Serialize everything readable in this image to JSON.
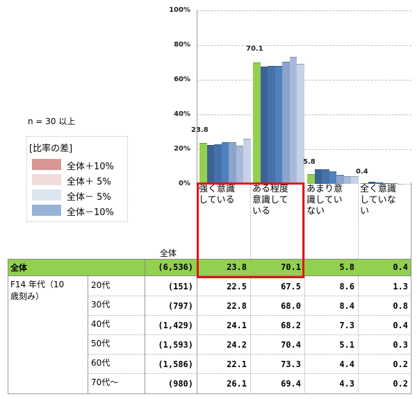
{
  "chart_data": {
    "type": "bar",
    "title": "",
    "xlabel": "",
    "ylabel": "",
    "ylim": [
      0,
      100
    ],
    "yticks": [
      "0%",
      "20%",
      "40%",
      "60%",
      "80%",
      "100%"
    ],
    "grid": true,
    "categories": [
      "強く意識している",
      "ある程度意識している",
      "あまり意識していない",
      "全く意識していない"
    ],
    "series": [
      {
        "name": "全体",
        "color": "#92d050",
        "values": [
          23.8,
          70.1,
          5.8,
          0.4
        ]
      },
      {
        "name": "20代",
        "color": "#3d6396",
        "values": [
          22.5,
          67.5,
          8.6,
          1.3
        ]
      },
      {
        "name": "30代",
        "color": "#4672a8",
        "values": [
          22.8,
          68.0,
          8.4,
          0.8
        ]
      },
      {
        "name": "40代",
        "color": "#4f81bd",
        "values": [
          24.1,
          68.2,
          7.3,
          0.4
        ]
      },
      {
        "name": "50代",
        "color": "#8aa4cc",
        "values": [
          24.2,
          70.4,
          5.1,
          0.3
        ]
      },
      {
        "name": "60代",
        "color": "#a9bad9",
        "values": [
          22.1,
          73.3,
          4.4,
          0.2
        ]
      },
      {
        "name": "70代〜",
        "color": "#c6d2e6",
        "values": [
          26.1,
          69.4,
          4.3,
          0.2
        ]
      }
    ],
    "data_labels": [
      "23.8",
      "70.1",
      "5.8",
      "0.4"
    ],
    "legend_position": "left"
  },
  "note": {
    "n_label": "n = 30 以上"
  },
  "legend": {
    "title": "[比率の差]",
    "items": [
      {
        "label": "全体＋10%",
        "color": "#da9694"
      },
      {
        "label": "全体＋ 5%",
        "color": "#f2dcdb"
      },
      {
        "label": "全体－ 5%",
        "color": "#dce6f1"
      },
      {
        "label": "全体－10%",
        "color": "#95b3d7"
      }
    ]
  },
  "table": {
    "n_header": "全体",
    "columns": [
      "強く意識している",
      "ある程度意識している",
      "あまり意識していない",
      "全く意識していない"
    ],
    "column_lines": [
      [
        "強く意識",
        "している"
      ],
      [
        "ある程度",
        "意識して",
        "いる"
      ],
      [
        "あまり意",
        "識してい",
        "ない"
      ],
      [
        "全く意識",
        "していな",
        "い"
      ]
    ],
    "total_row": {
      "label": "全体",
      "n": "(6,536)",
      "values": [
        "23.8",
        "70.1",
        "5.8",
        "0.4"
      ]
    },
    "group_label": "F14 年代（10歳刻み）",
    "group_label_lines": [
      "F14 年代（10",
      "歳刻み）"
    ],
    "rows": [
      {
        "label": "20代",
        "n": "(151)",
        "values": [
          "22.5",
          "67.5",
          "8.6",
          "1.3"
        ]
      },
      {
        "label": "30代",
        "n": "(797)",
        "values": [
          "22.8",
          "68.0",
          "8.4",
          "0.8"
        ]
      },
      {
        "label": "40代",
        "n": "(1,429)",
        "values": [
          "24.1",
          "68.2",
          "7.3",
          "0.4"
        ]
      },
      {
        "label": "50代",
        "n": "(1,593)",
        "values": [
          "24.2",
          "70.4",
          "5.1",
          "0.3"
        ]
      },
      {
        "label": "60代",
        "n": "(1,586)",
        "values": [
          "22.1",
          "73.3",
          "4.4",
          "0.2"
        ]
      },
      {
        "label": "70代〜",
        "n": "(980)",
        "values": [
          "26.1",
          "69.4",
          "4.3",
          "0.2"
        ]
      }
    ]
  },
  "highlight": {
    "color": "#e81010",
    "columns": [
      0,
      1
    ]
  }
}
